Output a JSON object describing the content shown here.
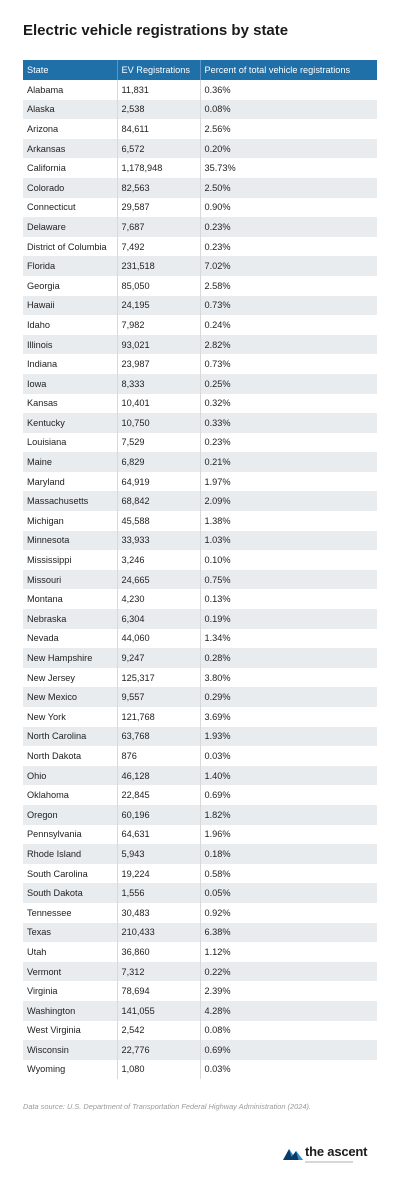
{
  "title": "Electric vehicle registrations by state",
  "table": {
    "headers": [
      "State",
      "EV Registrations",
      "Percent of total vehicle registrations"
    ],
    "rows": [
      [
        "Alabama",
        "11,831",
        "0.36%"
      ],
      [
        "Alaska",
        "2,538",
        "0.08%"
      ],
      [
        "Arizona",
        "84,611",
        "2.56%"
      ],
      [
        "Arkansas",
        "6,572",
        "0.20%"
      ],
      [
        "California",
        "1,178,948",
        "35.73%"
      ],
      [
        "Colorado",
        "82,563",
        "2.50%"
      ],
      [
        "Connecticut",
        "29,587",
        "0.90%"
      ],
      [
        "Delaware",
        "7,687",
        "0.23%"
      ],
      [
        "District of Columbia",
        "7,492",
        "0.23%"
      ],
      [
        "Florida",
        "231,518",
        "7.02%"
      ],
      [
        "Georgia",
        "85,050",
        "2.58%"
      ],
      [
        "Hawaii",
        "24,195",
        "0.73%"
      ],
      [
        "Idaho",
        "7,982",
        "0.24%"
      ],
      [
        "Illinois",
        "93,021",
        "2.82%"
      ],
      [
        "Indiana",
        "23,987",
        "0.73%"
      ],
      [
        "Iowa",
        "8,333",
        "0.25%"
      ],
      [
        "Kansas",
        "10,401",
        "0.32%"
      ],
      [
        "Kentucky",
        "10,750",
        "0.33%"
      ],
      [
        "Louisiana",
        "7,529",
        "0.23%"
      ],
      [
        "Maine",
        "6,829",
        "0.21%"
      ],
      [
        "Maryland",
        "64,919",
        "1.97%"
      ],
      [
        "Massachusetts",
        "68,842",
        "2.09%"
      ],
      [
        "Michigan",
        "45,588",
        "1.38%"
      ],
      [
        "Minnesota",
        "33,933",
        "1.03%"
      ],
      [
        "Mississippi",
        "3,246",
        "0.10%"
      ],
      [
        "Missouri",
        "24,665",
        "0.75%"
      ],
      [
        "Montana",
        "4,230",
        "0.13%"
      ],
      [
        "Nebraska",
        "6,304",
        "0.19%"
      ],
      [
        "Nevada",
        "44,060",
        "1.34%"
      ],
      [
        "New Hampshire",
        "9,247",
        "0.28%"
      ],
      [
        "New Jersey",
        "125,317",
        "3.80%"
      ],
      [
        "New Mexico",
        "9,557",
        "0.29%"
      ],
      [
        "New York",
        "121,768",
        "3.69%"
      ],
      [
        "North Carolina",
        "63,768",
        "1.93%"
      ],
      [
        "North Dakota",
        "876",
        "0.03%"
      ],
      [
        "Ohio",
        "46,128",
        "1.40%"
      ],
      [
        "Oklahoma",
        "22,845",
        "0.69%"
      ],
      [
        "Oregon",
        "60,196",
        "1.82%"
      ],
      [
        "Pennsylvania",
        "64,631",
        "1.96%"
      ],
      [
        "Rhode Island",
        "5,943",
        "0.18%"
      ],
      [
        "South Carolina",
        "19,224",
        "0.58%"
      ],
      [
        "South Dakota",
        "1,556",
        "0.05%"
      ],
      [
        "Tennessee",
        "30,483",
        "0.92%"
      ],
      [
        "Texas",
        "210,433",
        "6.38%"
      ],
      [
        "Utah",
        "36,860",
        "1.12%"
      ],
      [
        "Vermont",
        "7,312",
        "0.22%"
      ],
      [
        "Virginia",
        "78,694",
        "2.39%"
      ],
      [
        "Washington",
        "141,055",
        "4.28%"
      ],
      [
        "West Virginia",
        "2,542",
        "0.08%"
      ],
      [
        "Wisconsin",
        "22,776",
        "0.69%"
      ],
      [
        "Wyoming",
        "1,080",
        "0.03%"
      ]
    ]
  },
  "source": "Data source: U.S. Department of Transportation Federal Highway Administration (2024).",
  "logo": {
    "text": "the ascent",
    "icon": "ascent-mountain-logo-icon"
  },
  "colors": {
    "header_bg": "#1f6fa8",
    "stripe_bg": "#e9ecef",
    "logo_dark": "#0b3a66",
    "logo_light": "#2a8fd6"
  }
}
